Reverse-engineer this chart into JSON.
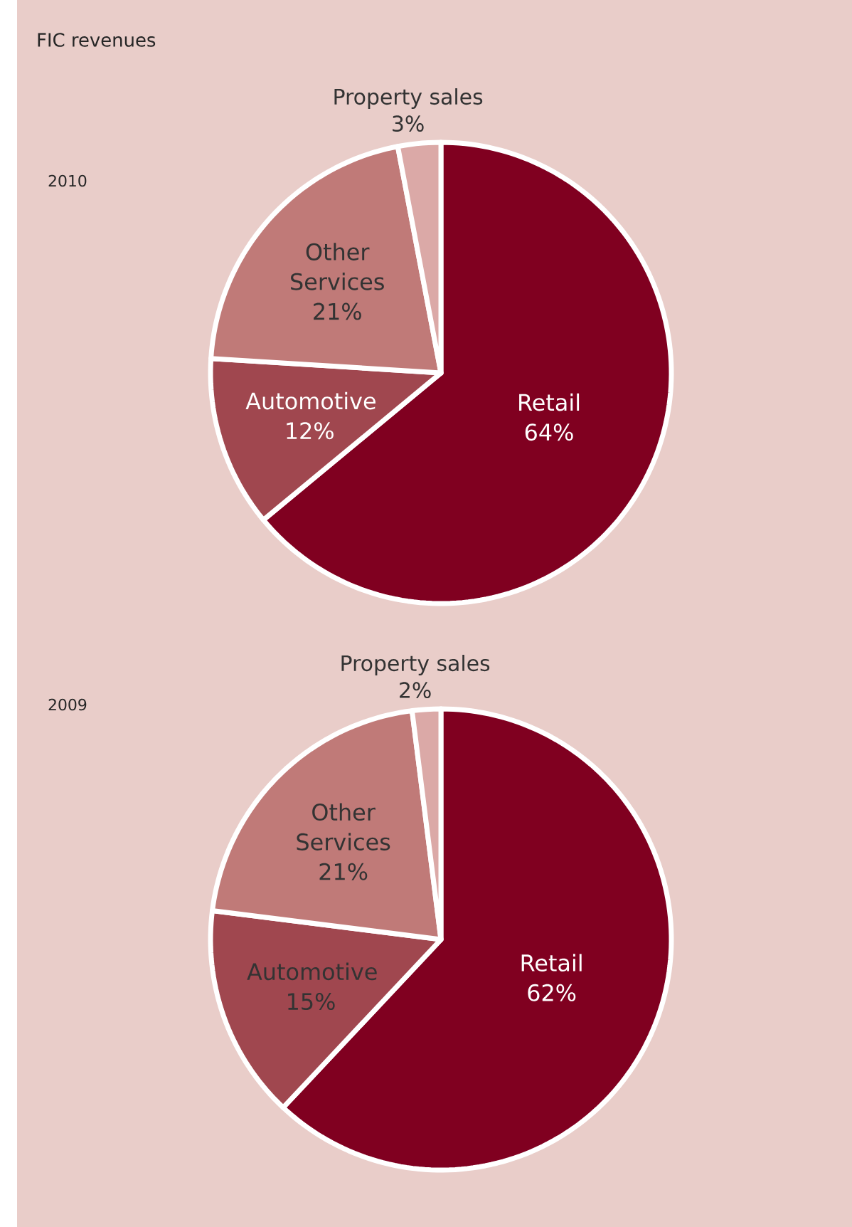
{
  "chart_data": [
    {
      "type": "pie",
      "title": "FIC revenues",
      "subtitle": "2010",
      "categories": [
        "Retail",
        "Automotive",
        "Other Services",
        "Property sales"
      ],
      "values": [
        64,
        12,
        21,
        3
      ],
      "value_labels": [
        "64%",
        "12%",
        "21%",
        "3%"
      ],
      "colors": [
        "#800020",
        "#a0474f",
        "#c07a78",
        "#dba9a7"
      ]
    },
    {
      "type": "pie",
      "subtitle": "2009",
      "categories": [
        "Retail",
        "Automotive",
        "Other Services",
        "Property sales"
      ],
      "values": [
        62,
        15,
        21,
        2
      ],
      "value_labels": [
        "62%",
        "15%",
        "21%",
        "2%"
      ],
      "colors": [
        "#800020",
        "#a0474f",
        "#c07a78",
        "#dba9a7"
      ]
    }
  ]
}
